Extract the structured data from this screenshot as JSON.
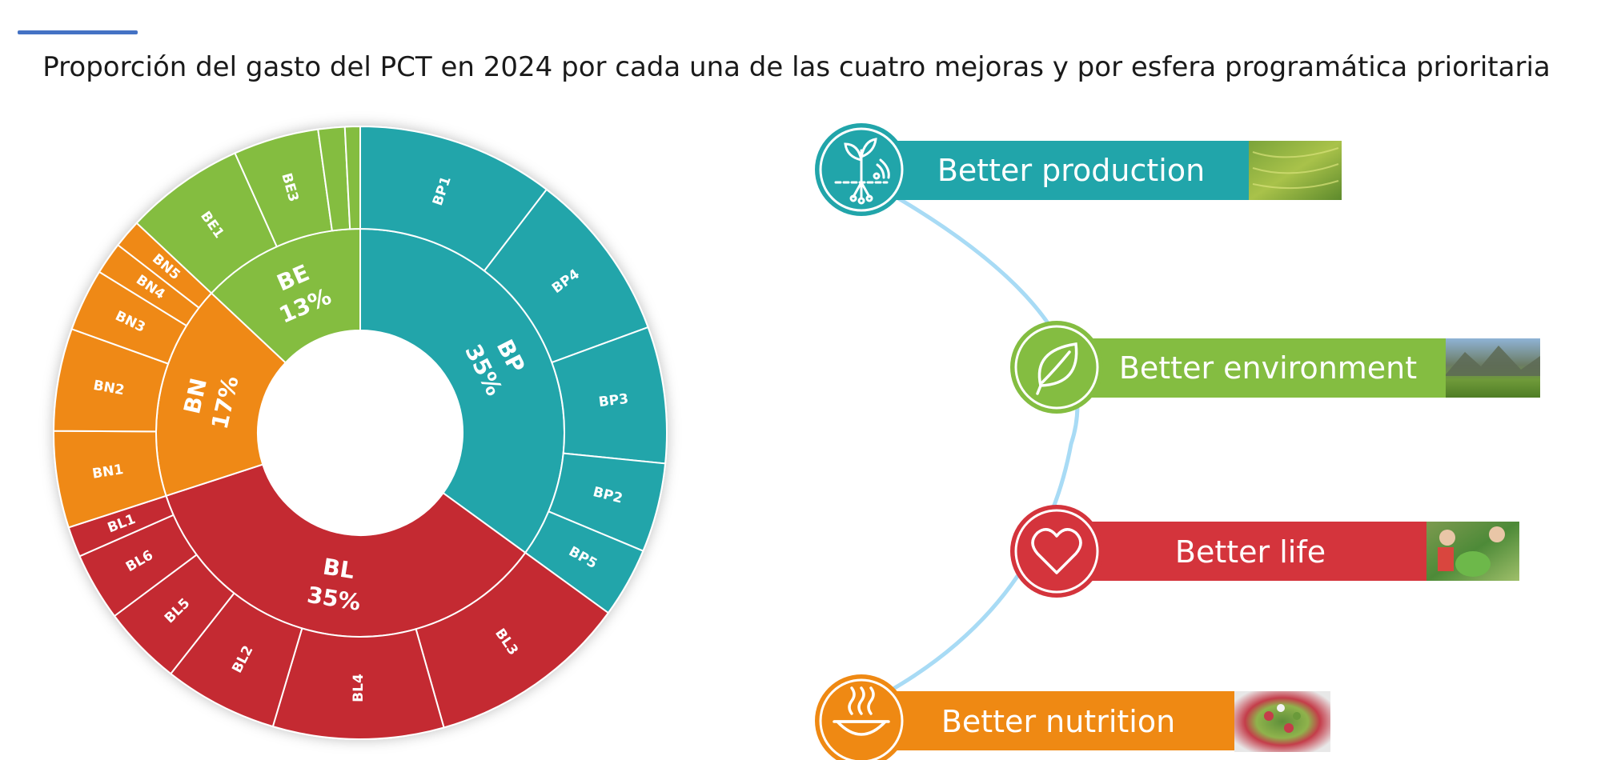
{
  "title": "Proporción del gasto del PCT en 2024 por cada una de las cuatro mejoras y por esfera programática prioritaria",
  "chart_data": {
    "type": "sunburst",
    "title": "Proporción del gasto del PCT en 2024 por cada una de las cuatro mejoras y por esfera programática prioritaria",
    "inner": [
      {
        "code": "BP",
        "label": "35%",
        "value": 35,
        "color": "#21a5aa"
      },
      {
        "code": "BL",
        "label": "35%",
        "value": 35,
        "color": "#c42b33"
      },
      {
        "code": "BN",
        "label": "17%",
        "value": 17,
        "color": "#ef8913"
      },
      {
        "code": "BE",
        "label": "13%",
        "value": 13,
        "color": "#84bd41"
      }
    ],
    "outer": [
      {
        "parent": "BP",
        "code": "BP1",
        "value": 10.4
      },
      {
        "parent": "BP",
        "code": "BP4",
        "value": 9.0
      },
      {
        "parent": "BP",
        "code": "BP3",
        "value": 7.2
      },
      {
        "parent": "BP",
        "code": "BP2",
        "value": 4.7
      },
      {
        "parent": "BP",
        "code": "BP5",
        "value": 3.7
      },
      {
        "parent": "BL",
        "code": "BL3",
        "value": 10.6
      },
      {
        "parent": "BL",
        "code": "BL4",
        "value": 9.0
      },
      {
        "parent": "BL",
        "code": "BL2",
        "value": 6.0
      },
      {
        "parent": "BL",
        "code": "BL5",
        "value": 4.2
      },
      {
        "parent": "BL",
        "code": "BL6",
        "value": 3.6
      },
      {
        "parent": "BL",
        "code": "BL1",
        "value": 1.6
      },
      {
        "parent": "BN",
        "code": "BN1",
        "value": 5.1
      },
      {
        "parent": "BN",
        "code": "BN2",
        "value": 5.4
      },
      {
        "parent": "BN",
        "code": "BN3",
        "value": 3.3
      },
      {
        "parent": "BN",
        "code": "BN4",
        "value": 1.7
      },
      {
        "parent": "BN",
        "code": "BN5",
        "value": 1.5
      },
      {
        "parent": "BE",
        "code": "BE1",
        "value": 6.3
      },
      {
        "parent": "BE",
        "code": "BE3",
        "value": 4.5
      },
      {
        "parent": "BE",
        "code": "",
        "value": 1.4
      },
      {
        "parent": "BE",
        "code": "",
        "value": 0.8
      }
    ]
  },
  "legend": [
    {
      "label": "Better production",
      "color": "#21a5aa",
      "icon": "plant-icon",
      "image": "terraced-fields-photo"
    },
    {
      "label": "Better environment",
      "color": "#84bd41",
      "icon": "leaf-icon",
      "image": "mountain-meadow-photo"
    },
    {
      "label": "Better life",
      "color": "#d4343c",
      "icon": "heart-icon",
      "image": "children-vegetables-photo"
    },
    {
      "label": "Better nutrition",
      "color": "#ef8913",
      "icon": "steaming-dish-icon",
      "image": "salad-bowl-photo"
    }
  ]
}
